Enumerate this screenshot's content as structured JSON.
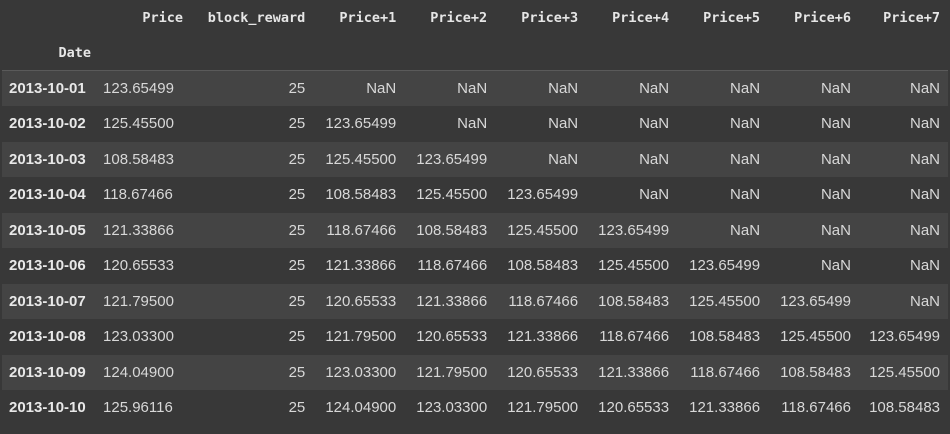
{
  "table": {
    "index_name": "Date",
    "columns": [
      "Price",
      "block_reward",
      "Price+1",
      "Price+2",
      "Price+3",
      "Price+4",
      "Price+5",
      "Price+6",
      "Price+7"
    ],
    "rows": [
      {
        "index": "2013-10-01",
        "cells": [
          "123.65499",
          "25",
          "NaN",
          "NaN",
          "NaN",
          "NaN",
          "NaN",
          "NaN",
          "NaN"
        ]
      },
      {
        "index": "2013-10-02",
        "cells": [
          "125.45500",
          "25",
          "123.65499",
          "NaN",
          "NaN",
          "NaN",
          "NaN",
          "NaN",
          "NaN"
        ]
      },
      {
        "index": "2013-10-03",
        "cells": [
          "108.58483",
          "25",
          "125.45500",
          "123.65499",
          "NaN",
          "NaN",
          "NaN",
          "NaN",
          "NaN"
        ]
      },
      {
        "index": "2013-10-04",
        "cells": [
          "118.67466",
          "25",
          "108.58483",
          "125.45500",
          "123.65499",
          "NaN",
          "NaN",
          "NaN",
          "NaN"
        ]
      },
      {
        "index": "2013-10-05",
        "cells": [
          "121.33866",
          "25",
          "118.67466",
          "108.58483",
          "125.45500",
          "123.65499",
          "NaN",
          "NaN",
          "NaN"
        ]
      },
      {
        "index": "2013-10-06",
        "cells": [
          "120.65533",
          "25",
          "121.33866",
          "118.67466",
          "108.58483",
          "125.45500",
          "123.65499",
          "NaN",
          "NaN"
        ]
      },
      {
        "index": "2013-10-07",
        "cells": [
          "121.79500",
          "25",
          "120.65533",
          "121.33866",
          "118.67466",
          "108.58483",
          "125.45500",
          "123.65499",
          "NaN"
        ]
      },
      {
        "index": "2013-10-08",
        "cells": [
          "123.03300",
          "25",
          "121.79500",
          "120.65533",
          "121.33866",
          "118.67466",
          "108.58483",
          "125.45500",
          "123.65499"
        ]
      },
      {
        "index": "2013-10-09",
        "cells": [
          "124.04900",
          "25",
          "123.03300",
          "121.79500",
          "120.65533",
          "121.33866",
          "118.67466",
          "108.58483",
          "125.45500"
        ]
      },
      {
        "index": "2013-10-10",
        "cells": [
          "125.96116",
          "25",
          "124.04900",
          "123.03300",
          "121.79500",
          "120.65533",
          "121.33866",
          "118.67466",
          "108.58483"
        ]
      }
    ]
  },
  "colors": {
    "background": "#383838",
    "row_stripe": "#444444",
    "text": "#d8d8d8",
    "header_text": "#e6e6e6"
  }
}
